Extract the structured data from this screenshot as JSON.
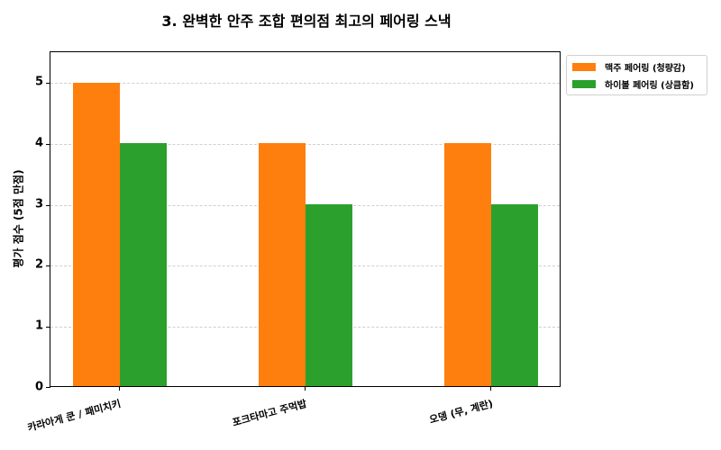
{
  "chart_data": {
    "type": "bar",
    "title": "3. 완벽한 안주 조합 편의점 최고의 페어링 스낵",
    "xlabel": "",
    "ylabel": "평가 점수 (5점 만점)",
    "categories": [
      "카라아게 쿤 / 패미치키",
      "포크타마고 주먹밥",
      "오뎅 (무, 계란)"
    ],
    "series": [
      {
        "name": "맥주 페어링 (청량감)",
        "color": "#ff7f0e",
        "values": [
          5,
          4,
          4
        ]
      },
      {
        "name": "하이볼 페어링 (상큼함)",
        "color": "#2ca02c",
        "values": [
          4,
          3,
          3
        ]
      }
    ],
    "ylim": [
      0,
      5.5
    ],
    "yticks": [
      "0",
      "1",
      "2",
      "3",
      "4",
      "5"
    ],
    "grid": true,
    "grid_axis": "y",
    "legend_position": "outside upper right"
  },
  "labels": {
    "title": "3. 완벽한 안주 조합 편의점 최고의 페어링 스낵",
    "ylabel": "평가 점수 (5점 만점)",
    "yticks": [
      "0",
      "1",
      "2",
      "3",
      "4",
      "5"
    ],
    "categories": [
      "카라아게 쿤 / 패미치키",
      "포크타마고 주먹밥",
      "오뎅 (무, 계란)"
    ],
    "legend": [
      "맥주 페어링 (청량감)",
      "하이볼 페어링 (상큼함)"
    ]
  }
}
